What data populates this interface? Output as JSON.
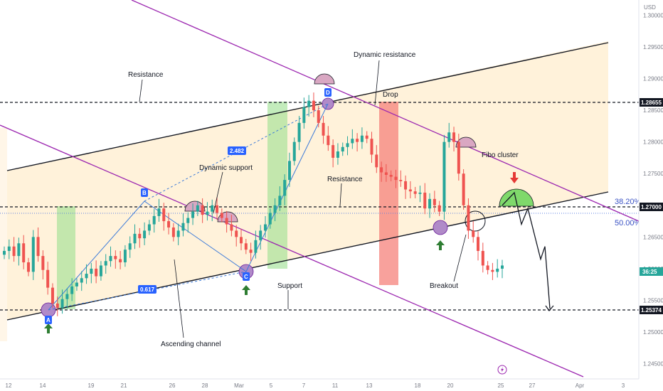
{
  "chart_data": {
    "type": "candlestick",
    "currency": "USD",
    "x_ticks": [
      "12",
      "14",
      "19",
      "21",
      "26",
      "28",
      "Mar",
      "5",
      "7",
      "11",
      "13",
      "18",
      "20",
      "25",
      "27",
      "Apr",
      "3"
    ],
    "y_ticks": [
      "1.30000",
      "1.29500",
      "1.29000",
      "1.28500",
      "1.28000",
      "1.27500",
      "1.26500",
      "1.26000",
      "1.25500",
      "1.25000",
      "1.24500"
    ],
    "ylim": [
      1.2435,
      1.3015
    ],
    "price_labels": {
      "top_level": "1.28655",
      "mid_level": "1.27000",
      "current": "36:25",
      "bottom_level": "1.25374"
    },
    "fib_levels": [
      "38.20%",
      "50.00%"
    ],
    "pattern_points": [
      "A",
      "B",
      "C",
      "D"
    ],
    "pattern_ratios": [
      "2.482",
      "0.617"
    ],
    "annotations": {
      "resistance_top": "Resistance",
      "dynamic_resistance": "Dynamic resistance",
      "drop": "Drop",
      "dynamic_support": "Dynamic support",
      "resistance_mid": "Resistance",
      "fibo_cluster": "Fibo cluster",
      "support": "Support",
      "breakout": "Breakout",
      "ascending_channel": "Ascending channel"
    },
    "closes": [
      1.2628,
      1.2635,
      1.262,
      1.264,
      1.261,
      1.2595,
      1.265,
      1.262,
      1.2598,
      1.257,
      1.2545,
      1.2538,
      1.2552,
      1.256,
      1.2572,
      1.2578,
      1.2585,
      1.2592,
      1.26,
      1.2588,
      1.2605,
      1.2612,
      1.262,
      1.2615,
      1.261,
      1.263,
      1.264,
      1.2655,
      1.2648,
      1.266,
      1.267,
      1.2683,
      1.2695,
      1.2675,
      1.2665,
      1.265,
      1.266,
      1.2672,
      1.268,
      1.269,
      1.27,
      1.2685,
      1.269,
      1.27,
      1.2688,
      1.268,
      1.267,
      1.266,
      1.265,
      1.264,
      1.263,
      1.2625,
      1.2645,
      1.266,
      1.267,
      1.2688,
      1.27,
      1.2715,
      1.274,
      1.277,
      1.28,
      1.283,
      1.2855,
      1.2865,
      1.285,
      1.283,
      1.281,
      1.2795,
      1.2775,
      1.2785,
      1.2792,
      1.2798,
      1.2805,
      1.28,
      1.281,
      1.2805,
      1.278,
      1.276,
      1.2752,
      1.2748,
      1.2745,
      1.274,
      1.2738,
      1.2725,
      1.2722,
      1.2718,
      1.272,
      1.2695,
      1.271,
      1.27,
      1.269,
      1.28,
      1.2815,
      1.28,
      1.275,
      1.27,
      1.266,
      1.265,
      1.2628,
      1.2605,
      1.2598,
      1.2595,
      1.26,
      1.2605
    ],
    "projection": [
      1.27,
      1.272,
      1.267,
      1.2695,
      1.2615,
      1.2635,
      1.2537
    ]
  },
  "colors": {
    "channel_fill": "#fff2da",
    "bull": "#26a69a",
    "bear": "#ef5350",
    "channel_line": "#131722",
    "dynamic_line": "#9c27b0",
    "pattern": "#3d7bd9",
    "green_zone": "#9be08f",
    "red_zone": "#f5817b",
    "half_circle_pink": "#d9a7c2",
    "half_circle_green": "#7fd96b",
    "arrow_green": "#2e7d32",
    "arrow_red": "#e53935",
    "fib_text": "#3a52c4",
    "dotted_blue": "#5b7fe0"
  }
}
